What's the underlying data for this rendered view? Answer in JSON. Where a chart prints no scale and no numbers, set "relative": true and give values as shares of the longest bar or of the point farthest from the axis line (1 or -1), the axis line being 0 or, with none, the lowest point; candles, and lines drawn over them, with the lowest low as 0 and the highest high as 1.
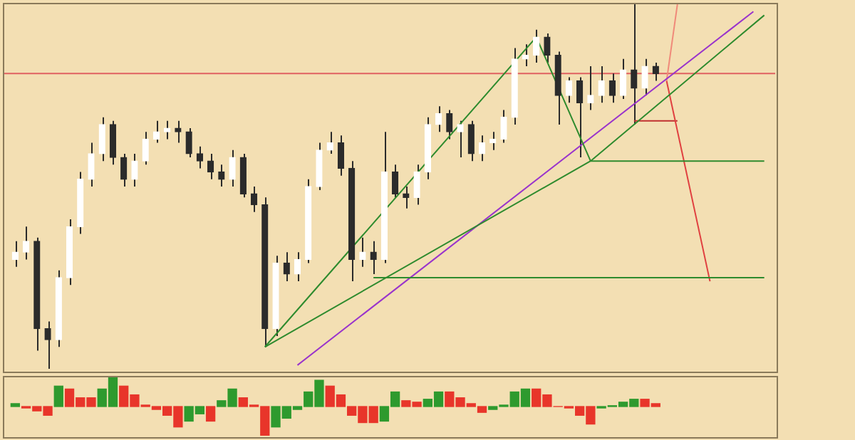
{
  "chart_data": [
    {
      "type": "candlestick",
      "relative": true,
      "legend": false,
      "colors": [
        "#ffffff",
        "#ffffff",
        "#2b2b2b",
        "#2b2b2b",
        "#ffffff",
        "#ffffff",
        "#ffffff",
        "#ffffff",
        "#ffffff",
        "#2b2b2b",
        "#2b2b2b",
        "#ffffff",
        "#ffffff",
        "#ffffff",
        "#ffffff",
        "#2b2b2b",
        "#2b2b2b",
        "#2b2b2b",
        "#2b2b2b",
        "#2b2b2b",
        "#ffffff",
        "#2b2b2b",
        "#2b2b2b",
        "#2b2b2b",
        "#ffffff",
        "#2b2b2b",
        "#ffffff",
        "#ffffff",
        "#ffffff",
        "#ffffff",
        "#2b2b2b",
        "#2b2b2b",
        "#ffffff",
        "#2b2b2b",
        "#ffffff",
        "#2b2b2b",
        "#2b2b2b",
        "#ffffff",
        "#ffffff",
        "#ffffff",
        "#2b2b2b",
        "#ffffff",
        "#2b2b2b",
        "#ffffff",
        "#ffffff",
        "#ffffff",
        "#ffffff",
        "#ffffff",
        "#ffffff",
        "#2b2b2b",
        "#2b2b2b",
        "#ffffff",
        "#2b2b2b",
        "#ffffff",
        "#ffffff",
        "#2b2b2b",
        "#ffffff",
        "#2b2b2b",
        "#ffffff",
        "#2b2b2b",
        null,
        null,
        null,
        null,
        null,
        null,
        null,
        null,
        null,
        null
      ],
      "categories": [
        null,
        null,
        null,
        null,
        null,
        null,
        null,
        null,
        null,
        null,
        null,
        null,
        null,
        null,
        null,
        null,
        null,
        null,
        null,
        null,
        null,
        null,
        null,
        null,
        null,
        null,
        null,
        null,
        null,
        null,
        null,
        null,
        null,
        null,
        null,
        null,
        null,
        null,
        null,
        null,
        null,
        null,
        null,
        null,
        null,
        null,
        null,
        null,
        null,
        null,
        null,
        null,
        null,
        null,
        null,
        null,
        null,
        null,
        null,
        null,
        null,
        null,
        null,
        null,
        null,
        null,
        null,
        null,
        null,
        null
      ],
      "ohlc": [
        [
          0.3,
          0.35,
          0.28,
          0.32
        ],
        [
          0.32,
          0.39,
          0.3,
          0.35
        ],
        [
          0.35,
          0.36,
          0.05,
          0.11
        ],
        [
          0.11,
          0.13,
          0.0,
          0.08
        ],
        [
          0.08,
          0.27,
          0.06,
          0.25
        ],
        [
          0.25,
          0.41,
          0.23,
          0.39
        ],
        [
          0.39,
          0.54,
          0.37,
          0.52
        ],
        [
          0.52,
          0.62,
          0.5,
          0.59
        ],
        [
          0.59,
          0.69,
          0.57,
          0.67
        ],
        [
          0.67,
          0.68,
          0.56,
          0.58
        ],
        [
          0.58,
          0.59,
          0.5,
          0.52
        ],
        [
          0.52,
          0.59,
          0.5,
          0.57
        ],
        [
          0.57,
          0.65,
          0.56,
          0.63
        ],
        [
          0.63,
          0.68,
          0.62,
          0.65
        ],
        [
          0.65,
          0.68,
          0.63,
          0.66
        ],
        [
          0.66,
          0.68,
          0.62,
          0.65
        ],
        [
          0.65,
          0.66,
          0.58,
          0.59
        ],
        [
          0.59,
          0.61,
          0.55,
          0.57
        ],
        [
          0.57,
          0.59,
          0.52,
          0.54
        ],
        [
          0.54,
          0.56,
          0.5,
          0.52
        ],
        [
          0.52,
          0.6,
          0.5,
          0.58
        ],
        [
          0.58,
          0.59,
          0.47,
          0.48
        ],
        [
          0.48,
          0.5,
          0.43,
          0.45
        ],
        [
          0.45,
          0.47,
          0.06,
          0.11
        ],
        [
          0.11,
          0.31,
          0.09,
          0.29
        ],
        [
          0.29,
          0.32,
          0.24,
          0.26
        ],
        [
          0.26,
          0.32,
          0.24,
          0.3
        ],
        [
          0.3,
          0.52,
          0.29,
          0.5
        ],
        [
          0.5,
          0.62,
          0.49,
          0.6
        ],
        [
          0.6,
          0.65,
          0.59,
          0.62
        ],
        [
          0.62,
          0.64,
          0.53,
          0.55
        ],
        [
          0.55,
          0.57,
          0.24,
          0.3
        ],
        [
          0.3,
          0.36,
          0.28,
          0.32
        ],
        [
          0.32,
          0.35,
          0.26,
          0.3
        ],
        [
          0.3,
          0.65,
          0.29,
          0.54
        ],
        [
          0.54,
          0.56,
          0.47,
          0.48
        ],
        [
          0.48,
          0.5,
          0.44,
          0.47
        ],
        [
          0.47,
          0.56,
          0.45,
          0.54
        ],
        [
          0.54,
          0.69,
          0.52,
          0.67
        ],
        [
          0.67,
          0.72,
          0.65,
          0.7
        ],
        [
          0.7,
          0.71,
          0.63,
          0.65
        ],
        [
          0.65,
          0.68,
          0.58,
          0.67
        ],
        [
          0.67,
          0.68,
          0.57,
          0.59
        ],
        [
          0.59,
          0.64,
          0.57,
          0.62
        ],
        [
          0.62,
          0.65,
          0.6,
          0.63
        ],
        [
          0.63,
          0.71,
          0.62,
          0.69
        ],
        [
          0.69,
          0.88,
          0.67,
          0.85
        ],
        [
          0.85,
          0.89,
          0.83,
          0.86
        ],
        [
          0.86,
          0.93,
          0.84,
          0.91
        ],
        [
          0.91,
          0.92,
          0.84,
          0.86
        ],
        [
          0.86,
          0.87,
          0.67,
          0.75
        ],
        [
          0.75,
          0.8,
          0.73,
          0.79
        ],
        [
          0.79,
          0.8,
          0.58,
          0.73
        ],
        [
          0.73,
          0.83,
          0.71,
          0.75
        ],
        [
          0.75,
          0.83,
          0.73,
          0.79
        ],
        [
          0.79,
          0.81,
          0.73,
          0.75
        ],
        [
          0.75,
          0.85,
          0.74,
          0.82
        ],
        [
          0.82,
          1.0,
          0.67,
          0.77
        ],
        [
          0.77,
          0.85,
          0.75,
          0.83
        ],
        [
          0.83,
          0.84,
          0.79,
          0.81
        ],
        null,
        null,
        null,
        null,
        null,
        null,
        null,
        null,
        null,
        null
      ],
      "series": [
        {
          "type": "line",
          "color": "#2e8b2e",
          "values": [
            null,
            null,
            null,
            null,
            null,
            null,
            null,
            null,
            null,
            null,
            null,
            null,
            null,
            null,
            null,
            null,
            null,
            null,
            null,
            null,
            null,
            null,
            null,
            0.06,
            null,
            null,
            null,
            null,
            null,
            null,
            null,
            null,
            null,
            null,
            null,
            null,
            null,
            null,
            null,
            null,
            null,
            null,
            null,
            null,
            null,
            null,
            null,
            null,
            0.91,
            null,
            null,
            null,
            null,
            0.57,
            null,
            null,
            null,
            null,
            null,
            null,
            null,
            null,
            null,
            null,
            null,
            null,
            null,
            null,
            null,
            null
          ]
        },
        {
          "type": "line",
          "color": "#2e8b2e",
          "values": [
            null,
            null,
            null,
            null,
            null,
            null,
            null,
            null,
            null,
            null,
            null,
            null,
            null,
            null,
            null,
            null,
            null,
            null,
            null,
            null,
            null,
            null,
            null,
            null,
            null,
            null,
            null,
            null,
            null,
            null,
            null,
            null,
            null,
            null,
            null,
            null,
            null,
            null,
            null,
            null,
            null,
            null,
            null,
            null,
            null,
            null,
            null,
            null,
            null,
            null,
            null,
            null,
            null,
            0.57,
            null,
            null,
            null,
            null,
            null,
            null,
            null,
            null,
            null,
            null,
            null,
            null,
            null,
            null,
            null,
            0.57
          ]
        },
        {
          "type": "line",
          "color": "#2e8b2e",
          "values": [
            null,
            null,
            null,
            null,
            null,
            null,
            null,
            null,
            null,
            null,
            null,
            null,
            null,
            null,
            null,
            null,
            null,
            null,
            null,
            null,
            null,
            null,
            null,
            0.06,
            null,
            null,
            null,
            null,
            null,
            null,
            null,
            null,
            null,
            null,
            null,
            null,
            null,
            null,
            null,
            null,
            null,
            null,
            null,
            null,
            null,
            null,
            null,
            null,
            null,
            null,
            null,
            null,
            null,
            0.57,
            null,
            null,
            null,
            null,
            null,
            null,
            null,
            null,
            null,
            null,
            null,
            null,
            null,
            null,
            null,
            0.97
          ]
        },
        {
          "type": "line",
          "color": "#2e8b2e",
          "values": [
            null,
            null,
            null,
            null,
            null,
            null,
            null,
            null,
            null,
            null,
            null,
            null,
            null,
            null,
            null,
            null,
            null,
            null,
            null,
            null,
            null,
            null,
            null,
            null,
            null,
            null,
            null,
            null,
            null,
            null,
            null,
            null,
            null,
            0.25,
            null,
            null,
            null,
            null,
            null,
            null,
            null,
            null,
            null,
            null,
            null,
            null,
            null,
            null,
            null,
            null,
            null,
            null,
            null,
            null,
            null,
            null,
            null,
            null,
            null,
            null,
            null,
            null,
            null,
            null,
            null,
            null,
            null,
            null,
            null,
            0.25
          ]
        },
        {
          "type": "line",
          "color": "#9933cc",
          "values": [
            null,
            null,
            null,
            null,
            null,
            null,
            null,
            null,
            null,
            null,
            null,
            null,
            null,
            null,
            null,
            null,
            null,
            null,
            null,
            null,
            null,
            null,
            null,
            null,
            null,
            null,
            0.01,
            null,
            null,
            null,
            null,
            null,
            null,
            null,
            null,
            null,
            null,
            null,
            null,
            null,
            null,
            null,
            null,
            null,
            null,
            null,
            null,
            null,
            null,
            null,
            null,
            null,
            null,
            null,
            null,
            null,
            null,
            null,
            null,
            null,
            null,
            null,
            null,
            null,
            null,
            null,
            null,
            null,
            0.98,
            null
          ]
        },
        {
          "type": "line",
          "color": "#f08a7a",
          "values": [
            null,
            null,
            null,
            null,
            null,
            null,
            null,
            null,
            null,
            null,
            null,
            null,
            null,
            null,
            null,
            null,
            null,
            null,
            null,
            null,
            null,
            null,
            null,
            null,
            null,
            null,
            null,
            null,
            null,
            null,
            null,
            null,
            null,
            null,
            null,
            null,
            null,
            null,
            null,
            null,
            null,
            null,
            null,
            null,
            null,
            null,
            null,
            null,
            null,
            null,
            null,
            null,
            null,
            null,
            null,
            null,
            null,
            null,
            null,
            null,
            0.79,
            1.0,
            null,
            null,
            null,
            null,
            null,
            null,
            null,
            null
          ]
        },
        {
          "type": "line",
          "color": "#e04040",
          "values": [
            null,
            null,
            null,
            null,
            null,
            null,
            null,
            null,
            null,
            null,
            null,
            null,
            null,
            null,
            null,
            null,
            null,
            null,
            null,
            null,
            null,
            null,
            null,
            null,
            null,
            null,
            null,
            null,
            null,
            null,
            null,
            null,
            null,
            null,
            null,
            null,
            null,
            null,
            null,
            null,
            null,
            null,
            null,
            null,
            null,
            null,
            null,
            null,
            null,
            null,
            null,
            null,
            null,
            null,
            null,
            null,
            null,
            null,
            null,
            null,
            0.79,
            null,
            null,
            null,
            0.24,
            null,
            null,
            null,
            null,
            null
          ]
        },
        {
          "type": "line",
          "color": "#c03030",
          "values": [
            null,
            null,
            null,
            null,
            null,
            null,
            null,
            null,
            null,
            null,
            null,
            null,
            null,
            null,
            null,
            null,
            null,
            null,
            null,
            null,
            null,
            null,
            null,
            null,
            null,
            null,
            null,
            null,
            null,
            null,
            null,
            null,
            null,
            null,
            null,
            null,
            null,
            null,
            null,
            null,
            null,
            null,
            null,
            null,
            null,
            null,
            null,
            null,
            null,
            null,
            null,
            null,
            null,
            null,
            null,
            null,
            null,
            0.68,
            null,
            null,
            null,
            0.68,
            null,
            null,
            null,
            null,
            null,
            null,
            null,
            null
          ]
        }
      ],
      "ref_lines": [
        {
          "axis": "y",
          "value": 0.81,
          "color": "#e06060"
        }
      ]
    },
    {
      "type": "bar",
      "relative": true,
      "legend": false,
      "categories": [
        null,
        null,
        null,
        null,
        null,
        null,
        null,
        null,
        null,
        null,
        null,
        null,
        null,
        null,
        null,
        null,
        null,
        null,
        null,
        null,
        null,
        null,
        null,
        null,
        null,
        null,
        null,
        null,
        null,
        null,
        null,
        null,
        null,
        null,
        null,
        null,
        null,
        null,
        null,
        null,
        null,
        null,
        null,
        null,
        null,
        null,
        null,
        null,
        null,
        null,
        null,
        null,
        null,
        null,
        null,
        null,
        null,
        null,
        null,
        null,
        null,
        null,
        null,
        null,
        null,
        null,
        null,
        null,
        null,
        null
      ],
      "values": [
        0.1,
        -0.05,
        -0.15,
        -0.3,
        0.7,
        0.6,
        0.3,
        0.3,
        0.6,
        1.0,
        0.7,
        0.4,
        0.05,
        -0.1,
        -0.3,
        -0.7,
        -0.5,
        -0.25,
        -0.5,
        0.2,
        0.6,
        0.3,
        0.05,
        -1.0,
        -0.7,
        -0.4,
        -0.1,
        0.5,
        0.9,
        0.7,
        0.4,
        -0.3,
        -0.55,
        -0.55,
        -0.5,
        0.5,
        0.2,
        0.15,
        0.25,
        0.5,
        0.5,
        0.3,
        0.1,
        -0.2,
        -0.1,
        0.05,
        0.5,
        0.6,
        0.6,
        0.4,
        0,
        -0.05,
        -0.3,
        -0.6,
        -0.05,
        0.03,
        0.15,
        0.25,
        0.25,
        0.1,
        null,
        null,
        null,
        null,
        null,
        null,
        null,
        null,
        null,
        null
      ],
      "colors": [
        "#2e9a2e",
        "#e8352a",
        "#e8352a",
        "#e8352a",
        "#2e9a2e",
        "#e8352a",
        "#e8352a",
        "#e8352a",
        "#2e9a2e",
        "#2e9a2e",
        "#e8352a",
        "#e8352a",
        "#e8352a",
        "#e8352a",
        "#e8352a",
        "#e8352a",
        "#2e9a2e",
        "#2e9a2e",
        "#e8352a",
        "#2e9a2e",
        "#2e9a2e",
        "#e8352a",
        "#e8352a",
        "#e8352a",
        "#2e9a2e",
        "#2e9a2e",
        "#2e9a2e",
        "#2e9a2e",
        "#2e9a2e",
        "#e8352a",
        "#e8352a",
        "#e8352a",
        "#e8352a",
        "#e8352a",
        "#2e9a2e",
        "#2e9a2e",
        "#e8352a",
        "#e8352a",
        "#2e9a2e",
        "#2e9a2e",
        "#e8352a",
        "#e8352a",
        "#e8352a",
        "#e8352a",
        "#2e9a2e",
        "#2e9a2e",
        "#2e9a2e",
        "#2e9a2e",
        "#e8352a",
        "#e8352a",
        "#e8352a",
        "#e8352a",
        "#e8352a",
        "#e8352a",
        "#2e9a2e",
        "#2e9a2e",
        "#2e9a2e",
        "#2e9a2e",
        "#e8352a",
        "#e8352a",
        "#888888",
        "#888888",
        "#888888",
        "#888888",
        "#888888",
        "#888888",
        "#888888",
        "#888888",
        "#888888",
        "#888888"
      ]
    }
  ]
}
